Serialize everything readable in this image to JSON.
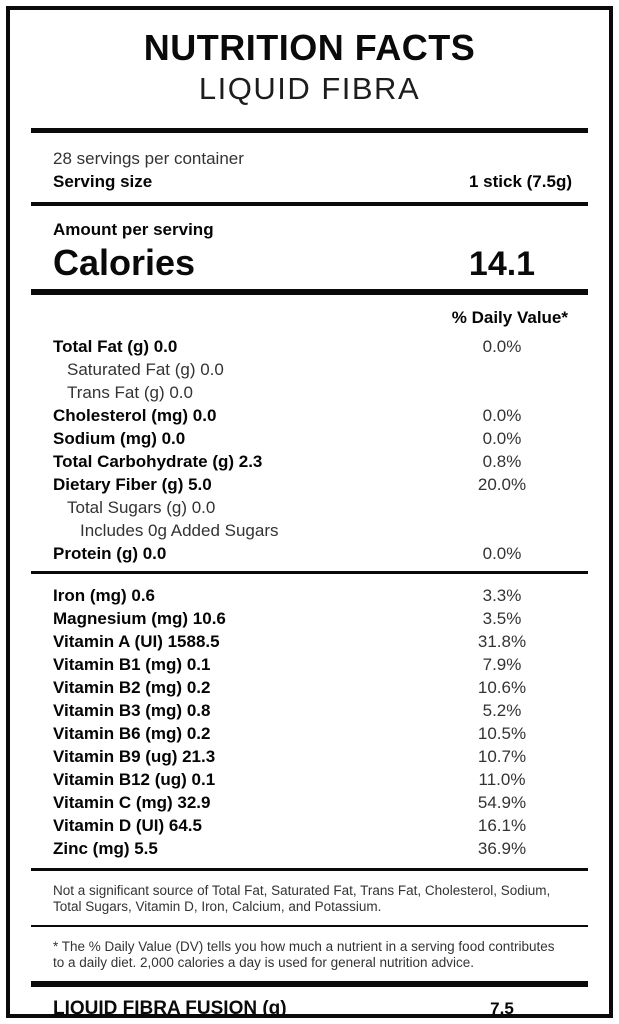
{
  "label": {
    "title": "NUTRITION FACTS",
    "subtitle": "LIQUID FIBRA",
    "servings_per_container": "28 servings per container",
    "serving_size_label": "Serving size",
    "serving_size_value": "1 stick (7.5g)",
    "amount_per_serving": "Amount per serving",
    "calories_label": "Calories",
    "calories_value": "14.1",
    "daily_value_header": "% Daily Value*",
    "nutrients": [
      {
        "name": "Total Fat (g) 0.0",
        "percent": "0.0%",
        "bold": true,
        "indent": 0
      },
      {
        "name": "Saturated Fat (g) 0.0",
        "percent": "",
        "bold": false,
        "indent": 1
      },
      {
        "name": "Trans Fat (g) 0.0",
        "percent": "",
        "bold": false,
        "indent": 1
      },
      {
        "name": "Cholesterol (mg) 0.0",
        "percent": "0.0%",
        "bold": true,
        "indent": 0
      },
      {
        "name": "Sodium (mg) 0.0",
        "percent": "0.0%",
        "bold": true,
        "indent": 0
      },
      {
        "name": "Total Carbohydrate (g) 2.3",
        "percent": "0.8%",
        "bold": true,
        "indent": 0
      },
      {
        "name": "Dietary Fiber (g) 5.0",
        "percent": "20.0%",
        "bold": true,
        "indent": 0
      },
      {
        "name": "Total Sugars (g) 0.0",
        "percent": "",
        "bold": false,
        "indent": 1
      },
      {
        "name": "Includes 0g Added Sugars",
        "percent": "",
        "bold": false,
        "indent": 2
      },
      {
        "name": "Protein (g) 0.0",
        "percent": "0.0%",
        "bold": true,
        "indent": 0
      }
    ],
    "micronutrients": [
      {
        "name": "Iron (mg) 0.6",
        "percent": "3.3%",
        "bold": true,
        "indent": 0
      },
      {
        "name": "Magnesium (mg) 10.6",
        "percent": "3.5%",
        "bold": true,
        "indent": 0
      },
      {
        "name": "Vitamin A (UI) 1588.5",
        "percent": "31.8%",
        "bold": true,
        "indent": 0
      },
      {
        "name": "Vitamin B1 (mg) 0.1",
        "percent": "7.9%",
        "bold": true,
        "indent": 0
      },
      {
        "name": "Vitamin B2 (mg) 0.2",
        "percent": "10.6%",
        "bold": true,
        "indent": 0
      },
      {
        "name": "Vitamin B3 (mg) 0.8",
        "percent": "5.2%",
        "bold": true,
        "indent": 0
      },
      {
        "name": "Vitamin B6 (mg) 0.2",
        "percent": "10.5%",
        "bold": true,
        "indent": 0
      },
      {
        "name": "Vitamin B9 (ug) 21.3",
        "percent": "10.7%",
        "bold": true,
        "indent": 0
      },
      {
        "name": "Vitamin B12 (ug) 0.1",
        "percent": "11.0%",
        "bold": true,
        "indent": 0
      },
      {
        "name": "Vitamin C (mg) 32.9",
        "percent": "54.9%",
        "bold": true,
        "indent": 0
      },
      {
        "name": "Vitamin D (UI) 64.5",
        "percent": "16.1%",
        "bold": true,
        "indent": 0
      },
      {
        "name": "Zinc (mg) 5.5",
        "percent": "36.9%",
        "bold": true,
        "indent": 0
      }
    ],
    "not_significant_note": "Not a significant source of Total Fat, Saturated Fat, Trans Fat, Cholesterol, Sodium, Total Sugars, Vitamin D, Iron, Calcium, and Potassium.",
    "footnote": "* The % Daily Value (DV) tells you how much a nutrient in a serving food contributes to a daily diet. 2,000 calories a day is used for general nutrition advice.",
    "footer_label": "LIQUID FIBRA FUSION (g)",
    "footer_value": "7.5",
    "colors": {
      "text": "#0a0a0a",
      "muted": "#333333",
      "background": "#ffffff",
      "border": "#0a0a0a"
    }
  }
}
